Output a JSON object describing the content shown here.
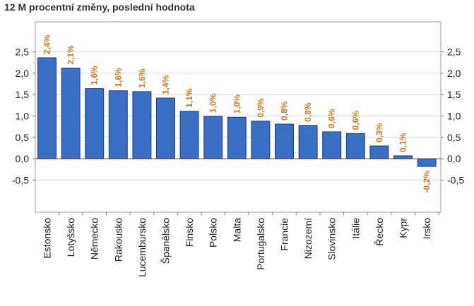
{
  "chart_data": {
    "type": "bar",
    "title": "12 M procentní změny, poslední hodnota",
    "xlabel": "",
    "ylabel": "",
    "categories": [
      "Estonsko",
      "Lotyšsko",
      "Německo",
      "Rakousko",
      "Lucembursko",
      "Španělsko",
      "Finsko",
      "Polsko",
      "Malta",
      "Portugalsko",
      "Francie",
      "Nizozemí",
      "Slovinsko",
      "Itálie",
      "Řecko",
      "Kypr",
      "Irsko"
    ],
    "values": [
      2.36,
      2.12,
      1.64,
      1.59,
      1.57,
      1.42,
      1.11,
      0.99,
      0.97,
      0.88,
      0.81,
      0.78,
      0.63,
      0.59,
      0.3,
      0.07,
      -0.18
    ],
    "data_labels": [
      "2,4%",
      "2,1%",
      "1,6%",
      "1,6%",
      "1,6%",
      "1,4%",
      "1,1%",
      "1,0%",
      "1,0%",
      "0,9%",
      "0,8%",
      "0,8%",
      "0,6%",
      "0,6%",
      "0,3%",
      "0,1%",
      "-0,2%"
    ],
    "yticks": [
      "-0,5",
      "0,0",
      "0,5",
      "1,0",
      "1,5",
      "2,0",
      "2,5"
    ],
    "ytick_values": [
      -0.5,
      0,
      0.5,
      1.0,
      1.5,
      2.0,
      2.5
    ],
    "ylim": [
      -1.25,
      3.2
    ],
    "grid": true,
    "colors": {
      "bar": "#3a6fc4",
      "bar_edge": "#1f3f7a",
      "data_label": "#c8782a",
      "grid": "#d8d8d8",
      "zero_line": "#444444"
    }
  }
}
